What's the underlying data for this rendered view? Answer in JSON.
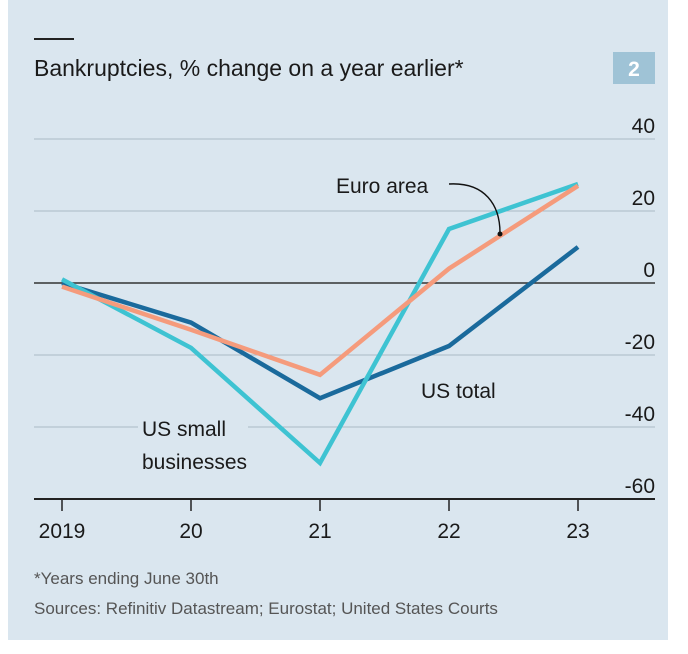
{
  "header": {
    "title": "Bankruptcies, % change on a year earlier*",
    "chart_number": "2"
  },
  "footer": {
    "note": "*Years ending June 30th",
    "sources": "Sources: Refinitiv Datastream; Eurostat; United States Courts"
  },
  "colors": {
    "background": "#dae6ef",
    "us_total": "#1a6a9c",
    "us_small": "#3ec3d2",
    "euro": "#f59b7c",
    "badge": "#9fc3d6"
  },
  "chart_data": {
    "type": "line",
    "title": "Bankruptcies, % change on a year earlier*",
    "x": [
      "2019",
      "20",
      "21",
      "22",
      "23"
    ],
    "ylim": [
      -60,
      40
    ],
    "yticks": [
      40,
      20,
      0,
      -20,
      -40,
      -60
    ],
    "ytick_labels": [
      "40",
      "20",
      "0",
      "-20",
      "-40",
      "-60"
    ],
    "grid": true,
    "series": [
      {
        "name": "US total",
        "key": "us_total",
        "values": [
          0,
          -11,
          -32,
          -17.5,
          10
        ]
      },
      {
        "name": "US small businesses",
        "label_lines": [
          "US small",
          "businesses"
        ],
        "key": "us_small",
        "values": [
          1,
          -18,
          -50,
          15,
          27.5
        ]
      },
      {
        "name": "Euro area",
        "key": "euro",
        "values": [
          -1,
          -13,
          -25.5,
          4,
          27
        ]
      }
    ]
  }
}
